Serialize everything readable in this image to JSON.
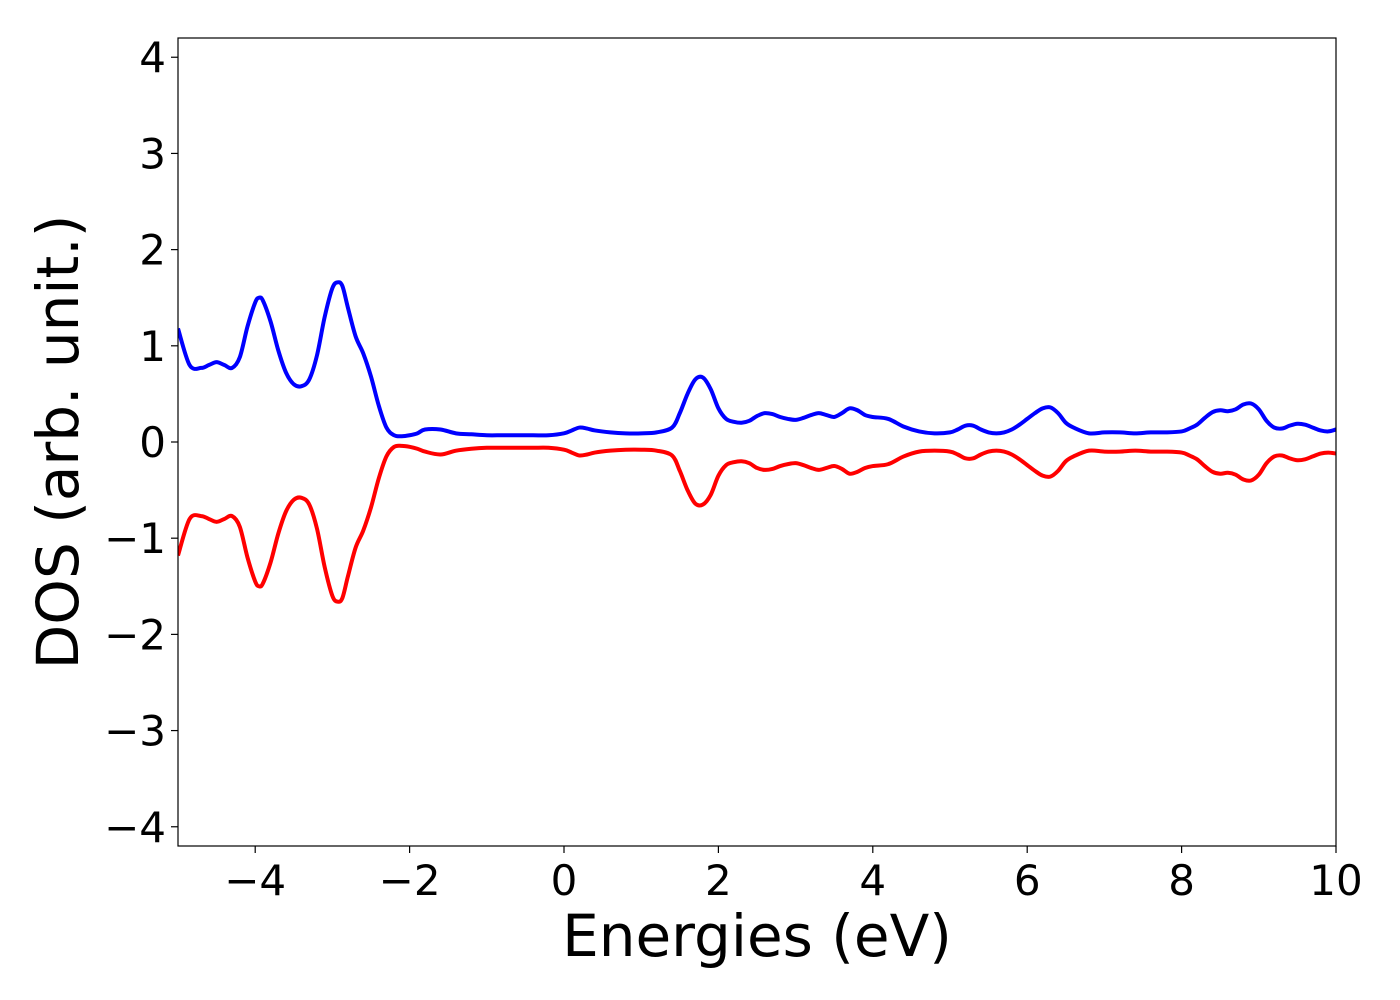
{
  "chart_data": {
    "type": "line",
    "title": "",
    "xlabel": "Energies (eV)",
    "ylabel": "DOS (arb. unit.)",
    "xlim": [
      -5,
      10
    ],
    "ylim": [
      -4.2,
      4.2
    ],
    "xticks": [
      -4,
      -2,
      0,
      2,
      4,
      6,
      8,
      10
    ],
    "xtick_labels": [
      "−4",
      "−2",
      "0",
      "2",
      "4",
      "6",
      "8",
      "10"
    ],
    "yticks": [
      -4,
      -3,
      -2,
      -1,
      0,
      1,
      2,
      3,
      4
    ],
    "ytick_labels": [
      "−4",
      "−3",
      "−2",
      "−1",
      "0",
      "1",
      "2",
      "3",
      "4"
    ],
    "grid": false,
    "legend": "none",
    "series": [
      {
        "color": "#0000ff",
        "x": [
          -5.0,
          -4.85,
          -4.7,
          -4.6,
          -4.5,
          -4.4,
          -4.3,
          -4.2,
          -4.1,
          -4.0,
          -3.95,
          -3.9,
          -3.8,
          -3.7,
          -3.6,
          -3.5,
          -3.4,
          -3.3,
          -3.2,
          -3.1,
          -3.0,
          -2.93,
          -2.87,
          -2.8,
          -2.7,
          -2.6,
          -2.5,
          -2.4,
          -2.3,
          -2.2,
          -2.1,
          -2.0,
          -1.9,
          -1.8,
          -1.6,
          -1.4,
          -1.2,
          -1.0,
          -0.8,
          -0.6,
          -0.4,
          -0.2,
          0.0,
          0.1,
          0.2,
          0.3,
          0.4,
          0.6,
          0.8,
          1.0,
          1.2,
          1.4,
          1.5,
          1.6,
          1.7,
          1.8,
          1.9,
          2.0,
          2.1,
          2.2,
          2.3,
          2.4,
          2.5,
          2.6,
          2.7,
          2.8,
          2.9,
          3.0,
          3.1,
          3.2,
          3.3,
          3.4,
          3.5,
          3.6,
          3.7,
          3.8,
          3.9,
          4.0,
          4.2,
          4.4,
          4.6,
          4.8,
          5.0,
          5.1,
          5.2,
          5.3,
          5.4,
          5.5,
          5.6,
          5.7,
          5.8,
          5.9,
          6.0,
          6.1,
          6.2,
          6.3,
          6.4,
          6.5,
          6.6,
          6.8,
          7.0,
          7.2,
          7.4,
          7.6,
          7.8,
          8.0,
          8.1,
          8.2,
          8.3,
          8.4,
          8.5,
          8.6,
          8.7,
          8.8,
          8.9,
          9.0,
          9.1,
          9.2,
          9.3,
          9.4,
          9.5,
          9.6,
          9.7,
          9.8,
          9.9,
          10.0
        ],
        "y": [
          1.18,
          0.8,
          0.77,
          0.8,
          0.83,
          0.8,
          0.77,
          0.88,
          1.2,
          1.45,
          1.5,
          1.47,
          1.25,
          0.95,
          0.72,
          0.6,
          0.58,
          0.65,
          0.9,
          1.3,
          1.6,
          1.66,
          1.62,
          1.4,
          1.1,
          0.92,
          0.68,
          0.38,
          0.15,
          0.07,
          0.06,
          0.07,
          0.09,
          0.13,
          0.13,
          0.09,
          0.08,
          0.07,
          0.07,
          0.07,
          0.07,
          0.07,
          0.09,
          0.12,
          0.15,
          0.14,
          0.12,
          0.1,
          0.09,
          0.09,
          0.1,
          0.15,
          0.3,
          0.5,
          0.65,
          0.67,
          0.55,
          0.35,
          0.24,
          0.21,
          0.2,
          0.22,
          0.27,
          0.3,
          0.29,
          0.26,
          0.24,
          0.23,
          0.25,
          0.28,
          0.3,
          0.28,
          0.26,
          0.3,
          0.35,
          0.33,
          0.28,
          0.26,
          0.24,
          0.16,
          0.11,
          0.09,
          0.1,
          0.13,
          0.17,
          0.17,
          0.13,
          0.1,
          0.09,
          0.1,
          0.13,
          0.18,
          0.24,
          0.3,
          0.35,
          0.36,
          0.3,
          0.2,
          0.15,
          0.09,
          0.1,
          0.1,
          0.09,
          0.1,
          0.1,
          0.11,
          0.14,
          0.18,
          0.25,
          0.31,
          0.33,
          0.32,
          0.34,
          0.39,
          0.4,
          0.34,
          0.22,
          0.15,
          0.14,
          0.17,
          0.19,
          0.18,
          0.15,
          0.12,
          0.11,
          0.13
        ]
      },
      {
        "color": "#ff0000",
        "x": [
          -5.0,
          -4.85,
          -4.7,
          -4.6,
          -4.5,
          -4.4,
          -4.3,
          -4.2,
          -4.1,
          -4.0,
          -3.95,
          -3.9,
          -3.8,
          -3.7,
          -3.6,
          -3.5,
          -3.4,
          -3.3,
          -3.2,
          -3.1,
          -3.0,
          -2.93,
          -2.87,
          -2.8,
          -2.7,
          -2.6,
          -2.5,
          -2.4,
          -2.3,
          -2.2,
          -2.1,
          -2.0,
          -1.9,
          -1.8,
          -1.6,
          -1.4,
          -1.2,
          -1.0,
          -0.8,
          -0.6,
          -0.4,
          -0.2,
          0.0,
          0.1,
          0.2,
          0.3,
          0.4,
          0.6,
          0.8,
          1.0,
          1.2,
          1.4,
          1.5,
          1.6,
          1.7,
          1.8,
          1.9,
          2.0,
          2.1,
          2.2,
          2.3,
          2.4,
          2.5,
          2.6,
          2.7,
          2.8,
          2.9,
          3.0,
          3.1,
          3.2,
          3.3,
          3.4,
          3.5,
          3.6,
          3.7,
          3.8,
          3.9,
          4.0,
          4.2,
          4.4,
          4.6,
          4.8,
          5.0,
          5.1,
          5.2,
          5.3,
          5.4,
          5.5,
          5.6,
          5.7,
          5.8,
          5.9,
          6.0,
          6.1,
          6.2,
          6.3,
          6.4,
          6.5,
          6.6,
          6.8,
          7.0,
          7.2,
          7.4,
          7.6,
          7.8,
          8.0,
          8.1,
          8.2,
          8.3,
          8.4,
          8.5,
          8.6,
          8.7,
          8.8,
          8.9,
          9.0,
          9.1,
          9.2,
          9.3,
          9.4,
          9.5,
          9.6,
          9.7,
          9.8,
          9.9,
          10.0
        ],
        "y": [
          -1.18,
          -0.8,
          -0.77,
          -0.8,
          -0.83,
          -0.8,
          -0.77,
          -0.88,
          -1.2,
          -1.45,
          -1.5,
          -1.47,
          -1.25,
          -0.95,
          -0.72,
          -0.6,
          -0.58,
          -0.65,
          -0.9,
          -1.3,
          -1.6,
          -1.66,
          -1.62,
          -1.4,
          -1.1,
          -0.92,
          -0.68,
          -0.38,
          -0.15,
          -0.05,
          -0.04,
          -0.05,
          -0.07,
          -0.1,
          -0.13,
          -0.09,
          -0.07,
          -0.06,
          -0.06,
          -0.06,
          -0.06,
          -0.06,
          -0.08,
          -0.11,
          -0.14,
          -0.13,
          -0.11,
          -0.09,
          -0.08,
          -0.08,
          -0.09,
          -0.14,
          -0.3,
          -0.5,
          -0.64,
          -0.65,
          -0.55,
          -0.35,
          -0.24,
          -0.21,
          -0.2,
          -0.22,
          -0.27,
          -0.29,
          -0.28,
          -0.25,
          -0.23,
          -0.22,
          -0.24,
          -0.27,
          -0.29,
          -0.27,
          -0.25,
          -0.28,
          -0.33,
          -0.31,
          -0.27,
          -0.25,
          -0.23,
          -0.15,
          -0.1,
          -0.09,
          -0.1,
          -0.13,
          -0.17,
          -0.17,
          -0.13,
          -0.1,
          -0.09,
          -0.1,
          -0.13,
          -0.18,
          -0.24,
          -0.3,
          -0.35,
          -0.36,
          -0.3,
          -0.2,
          -0.15,
          -0.09,
          -0.1,
          -0.1,
          -0.09,
          -0.1,
          -0.1,
          -0.11,
          -0.14,
          -0.18,
          -0.25,
          -0.31,
          -0.33,
          -0.32,
          -0.34,
          -0.39,
          -0.4,
          -0.34,
          -0.22,
          -0.15,
          -0.14,
          -0.17,
          -0.19,
          -0.18,
          -0.15,
          -0.12,
          -0.11,
          -0.12
        ]
      }
    ]
  }
}
